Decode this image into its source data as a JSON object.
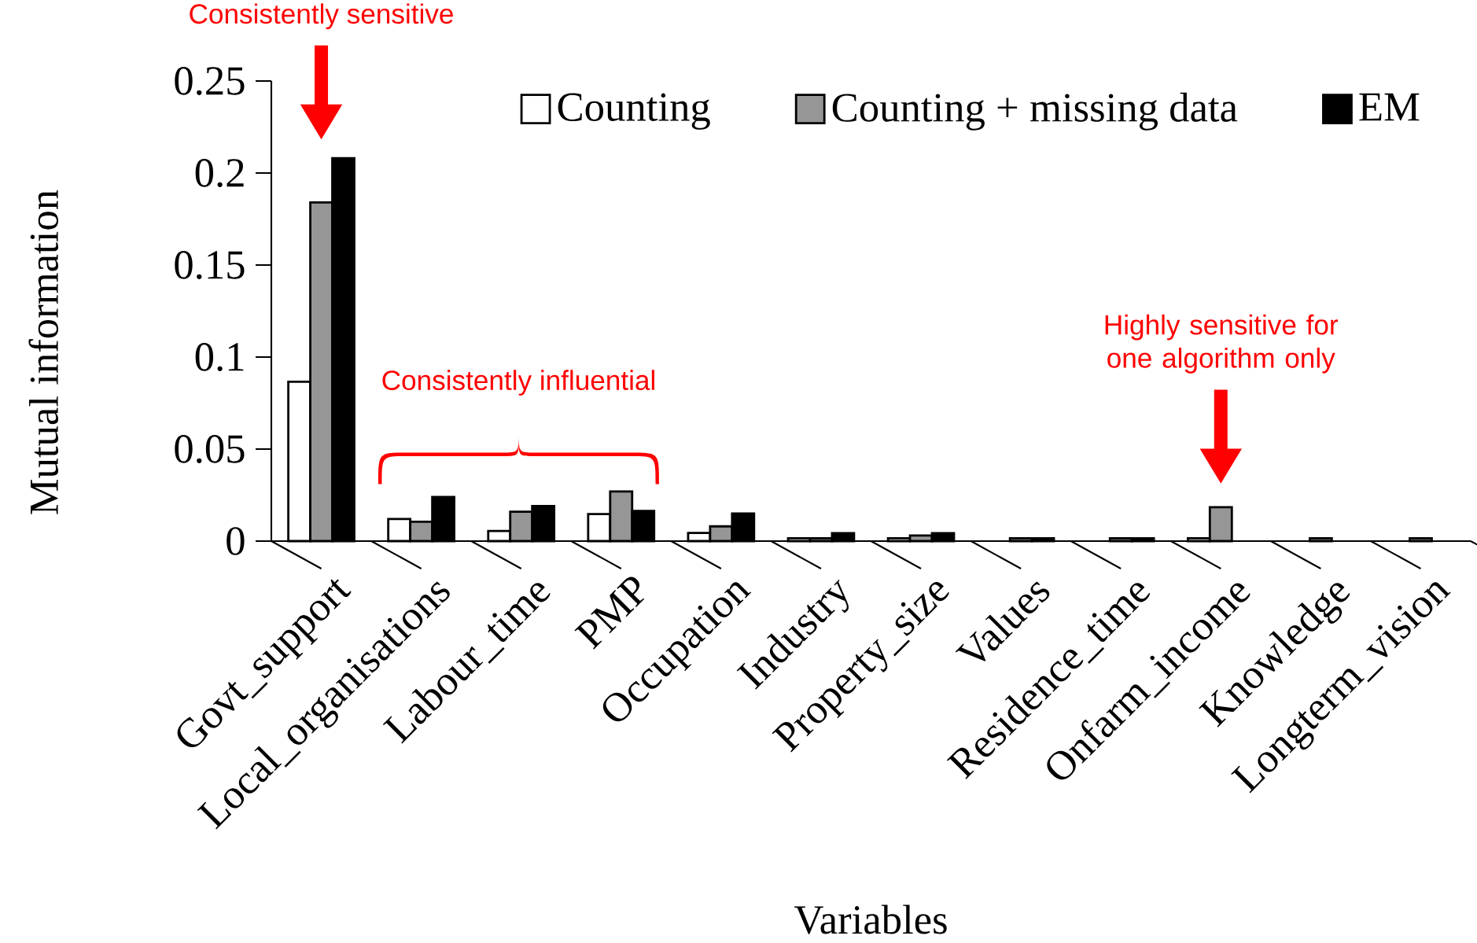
{
  "chart_data": {
    "type": "bar",
    "xlabel": "Variables",
    "ylabel": "Mutual information",
    "categories": [
      "Govt_support",
      "Local_organisations",
      "Labour_time",
      "PMP",
      "Occupation",
      "Industry",
      "Property_size",
      "Values",
      "Residence_time",
      "Onfarm_income",
      "Knowledge",
      "Longterm_vision"
    ],
    "series": [
      {
        "name": "Counting",
        "color": "#ffffff",
        "values": [
          0.0866,
          0.012,
          0.0055,
          0.0147,
          0.0044,
          0.0015,
          0.0015,
          null,
          null,
          0.0015,
          null,
          null
        ]
      },
      {
        "name": "Counting + missing data",
        "color": "#969696",
        "values": [
          0.184,
          0.0105,
          0.016,
          0.027,
          0.008,
          0.0015,
          0.003,
          0.0015,
          0.0015,
          0.0184,
          0.0015,
          0.0015
        ]
      },
      {
        "name": "EM",
        "color": "#000000",
        "values": [
          0.208,
          0.024,
          0.019,
          0.0164,
          0.015,
          0.0043,
          0.0043,
          0.0015,
          0.0015,
          null,
          null,
          null
        ]
      }
    ],
    "ylim": [
      0,
      0.25
    ],
    "yticks": [
      0,
      0.05,
      0.1,
      0.15,
      0.2,
      0.25
    ],
    "legend": "top right",
    "annotations": [
      "Consistently sensitive",
      "Consistently influential",
      "Highly sensitive for one algorithm only"
    ]
  }
}
